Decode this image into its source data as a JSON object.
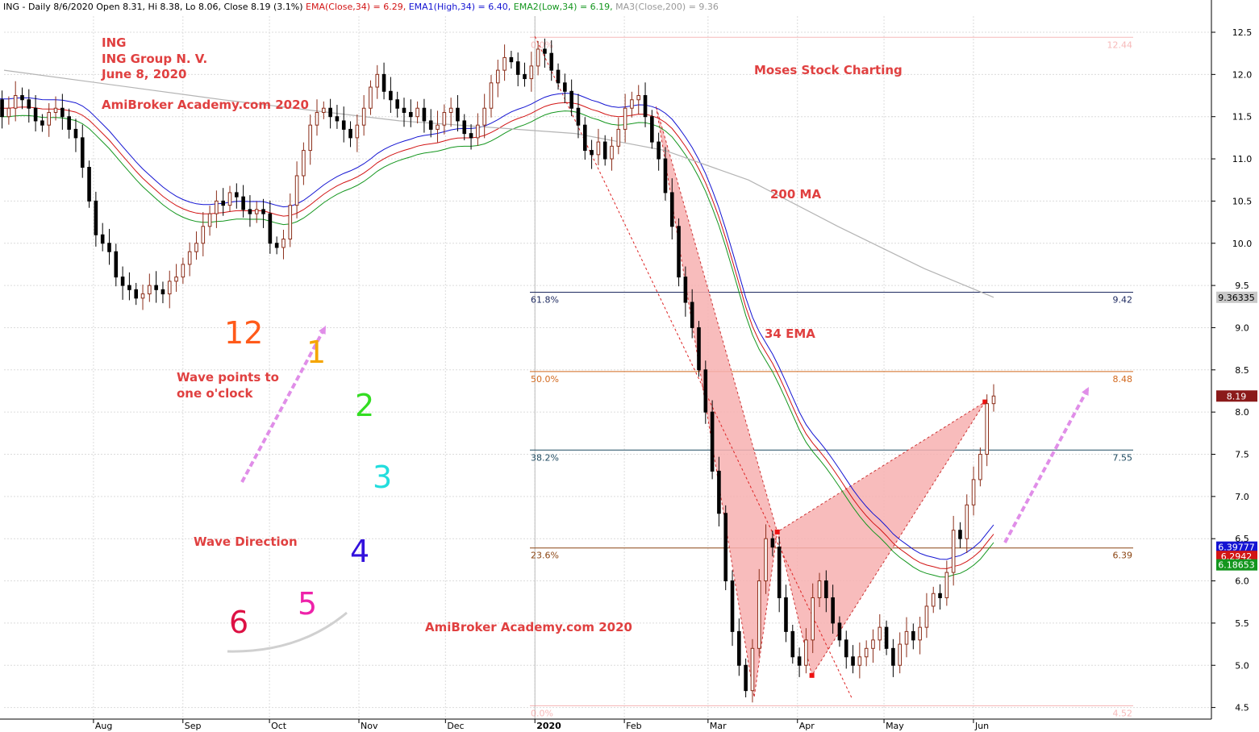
{
  "header": {
    "prefix": "ING - Daily 8/6/2020 Open 8.31, Hi 8.38, Lo 8.06, Close 8.19 (3.1%)",
    "ema": "EMA(Close,34) = 6.29,",
    "ema1": "EMA1(High,34) = 6.40,",
    "ema2": "EMA2(Low,34) = 6.19,",
    "ma3": "MA3(Close,200) = 9.36"
  },
  "annotations": {
    "ticker": "ING",
    "company": "ING Group N. V.",
    "date": "June 8, 2020",
    "academy_top": "AmiBroker Academy.com  2020",
    "moses": "Moses Stock Charting",
    "ma200": "200 MA",
    "ema34": "34 EMA",
    "wave_points": [
      "Wave points to",
      "one o'clock"
    ],
    "wave_direction": "Wave Direction",
    "academy_bottom": "AmiBroker Academy.com  2020"
  },
  "clock": {
    "numbers": [
      {
        "text": "12",
        "color": "#ff5a1a"
      },
      {
        "text": "1",
        "color": "#f5a500"
      },
      {
        "text": "2",
        "color": "#33dd22"
      },
      {
        "text": "3",
        "color": "#22dddd"
      },
      {
        "text": "4",
        "color": "#3311dd"
      },
      {
        "text": "5",
        "color": "#ee22aa"
      },
      {
        "text": "6",
        "color": "#dd1144"
      }
    ]
  },
  "colors": {
    "ema": "#d21414",
    "ema_high": "#1414d2",
    "ema_low": "#14961e",
    "ma200": "#b4b4b4",
    "annotation": "#e04040",
    "up_candle": "#8b2e1a",
    "down_candle": "#000000",
    "harmonic_fill": "#f7b0b0",
    "arrow": "#e08ee8"
  },
  "chart_data": {
    "type": "candlestick",
    "ylim": [
      4.4,
      12.7
    ],
    "yticks": [
      "12.5",
      "12.0",
      "11.5",
      "11.0",
      "10.5",
      "10.0",
      "9.5",
      "9.0",
      "8.5",
      "8.0",
      "7.5",
      "7.0",
      "6.5",
      "6.0",
      "5.5",
      "5.0",
      "4.5"
    ],
    "xticks": [
      "Aug",
      "Sep",
      "Oct",
      "Nov",
      "Dec",
      "2020",
      "Feb",
      "Mar",
      "Apr",
      "May",
      "Jun"
    ],
    "grid": true,
    "closes": [
      11.7,
      11.5,
      11.6,
      11.75,
      11.7,
      11.6,
      11.45,
      11.4,
      11.55,
      11.6,
      11.5,
      11.35,
      11.25,
      10.9,
      10.5,
      10.1,
      10.0,
      9.9,
      9.6,
      9.5,
      9.45,
      9.35,
      9.4,
      9.5,
      9.45,
      9.4,
      9.55,
      9.6,
      9.75,
      9.9,
      10.0,
      10.2,
      10.35,
      10.5,
      10.45,
      10.6,
      10.55,
      10.4,
      10.35,
      10.4,
      10.35,
      10.0,
      9.95,
      10.05,
      10.45,
      10.8,
      11.1,
      11.4,
      11.55,
      11.6,
      11.5,
      11.45,
      11.35,
      11.25,
      11.4,
      11.6,
      11.85,
      12.0,
      11.8,
      11.7,
      11.6,
      11.55,
      11.5,
      11.6,
      11.45,
      11.35,
      11.4,
      11.55,
      11.6,
      11.45,
      11.3,
      11.25,
      11.4,
      11.6,
      11.9,
      12.05,
      12.2,
      12.15,
      12.0,
      11.95,
      12.1,
      12.3,
      12.25,
      12.05,
      11.9,
      11.8,
      11.6,
      11.4,
      11.1,
      11.05,
      11.2,
      11.0,
      11.15,
      11.35,
      11.6,
      11.7,
      11.75,
      11.5,
      11.2,
      11.0,
      10.6,
      10.2,
      9.6,
      9.3,
      9.0,
      8.5,
      8.0,
      7.3,
      6.8,
      6.0,
      5.4,
      5.0,
      4.7,
      5.2,
      6.0,
      6.5,
      6.4,
      5.8,
      5.4,
      5.1,
      5.0,
      5.3,
      5.8,
      6.0,
      5.8,
      5.5,
      5.3,
      5.1,
      5.0,
      5.1,
      5.2,
      5.3,
      5.45,
      5.2,
      5.0,
      5.25,
      5.4,
      5.3,
      5.45,
      5.7,
      5.85,
      5.8,
      6.1,
      6.6,
      6.5,
      6.9,
      7.2,
      7.5,
      8.1,
      8.19
    ],
    "ma200": [
      {
        "date": "2019-07-01",
        "value": 12.05
      },
      {
        "date": "2019-09-15",
        "value": 11.7
      },
      {
        "date": "2019-11-15",
        "value": 11.45
      },
      {
        "date": "2020-01-15",
        "value": 11.3
      },
      {
        "date": "2020-02-15",
        "value": 11.1
      },
      {
        "date": "2020-03-15",
        "value": 10.75
      },
      {
        "date": "2020-04-15",
        "value": 10.2
      },
      {
        "date": "2020-05-15",
        "value": 9.7
      },
      {
        "date": "2020-06-08",
        "value": 9.36
      }
    ],
    "fibonacci": [
      {
        "label": "0.0%",
        "value": 12.44,
        "color": "#f08080"
      },
      {
        "label": "61.8%",
        "value": 9.42,
        "color": "#1e2a60"
      },
      {
        "label": "50.0%",
        "value": 8.48,
        "color": "#d2691e"
      },
      {
        "label": "38.2%",
        "value": 7.55,
        "color": "#1e4a60"
      },
      {
        "label": "23.6%",
        "value": 6.39,
        "color": "#8b4513"
      },
      {
        "label": "0.0%",
        "value": 4.52,
        "color": "#f08080"
      }
    ],
    "price_tags": [
      {
        "value": "9.36335",
        "color": "#c8c8c8",
        "text_color": "#000000",
        "y": 9.36
      },
      {
        "value": "8.19",
        "color": "#8b1a1a",
        "text_color": "#ffffff",
        "y": 8.19
      },
      {
        "value": "6.39777",
        "color": "#1414d2",
        "text_color": "#ffffff",
        "y": 6.4
      },
      {
        "value": "6.2942",
        "color": "#d21414",
        "text_color": "#ffffff",
        "y": 6.29
      },
      {
        "value": "6.18653",
        "color": "#14961e",
        "text_color": "#ffffff",
        "y": 6.19
      }
    ]
  }
}
